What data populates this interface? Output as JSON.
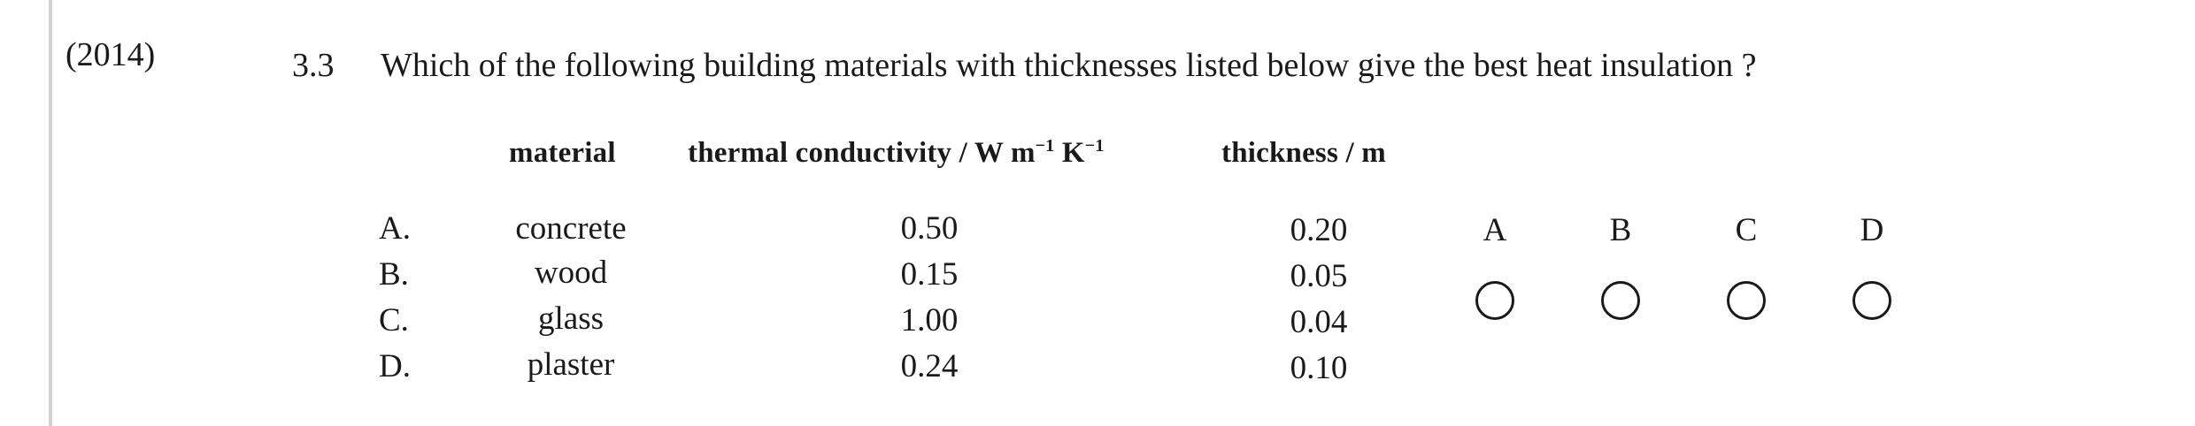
{
  "year": "(2014)",
  "question": {
    "number": "3.3",
    "text": "Which of the following building materials with thicknesses listed below give the best heat insulation ?"
  },
  "table": {
    "headers": {
      "material": "material",
      "conductivity_prefix": "thermal conductivity / W m",
      "conductivity_exp1": "−1",
      "conductivity_mid": " K",
      "conductivity_exp2": "−1",
      "thickness": "thickness / m"
    },
    "rows": [
      {
        "label": "A.",
        "material": "concrete",
        "conductivity": "0.50",
        "thickness": "0.20"
      },
      {
        "label": "B.",
        "material": "wood",
        "conductivity": "0.15",
        "thickness": "0.05"
      },
      {
        "label": "C.",
        "material": "glass",
        "conductivity": "1.00",
        "thickness": "0.04"
      },
      {
        "label": "D.",
        "material": "plaster",
        "conductivity": "0.24",
        "thickness": "0.10"
      }
    ]
  },
  "options": [
    {
      "letter": "A"
    },
    {
      "letter": "B"
    },
    {
      "letter": "C"
    },
    {
      "letter": "D"
    }
  ]
}
